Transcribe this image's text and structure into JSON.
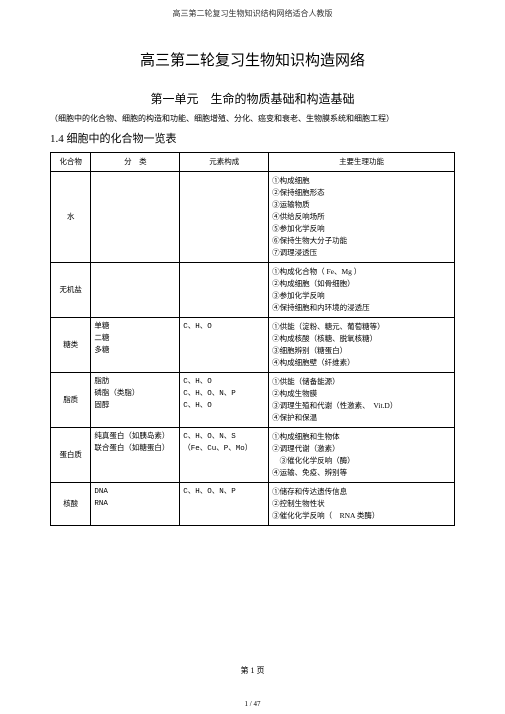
{
  "header": "高三第二轮复习生物知识结构网络适合人教版",
  "title_main": "高三第二轮复习生物知识构造网络",
  "title_unit": "第一单元　生命的物质基础和构造基础",
  "subtitle": "（细胞中的化合物、细胞的构造和功能、细胞增殖、分化、癌变和衰老、生物膜系统和细胞工程）",
  "section_heading": "1.4 细胞中的化合物一览表",
  "table": {
    "headers": [
      "化合物",
      "分　类",
      "元素构成",
      "主要生理功能"
    ],
    "rows": [
      {
        "compound": "水",
        "category": "",
        "elements": "",
        "functions": [
          "①构成细胞",
          "②保持细胞形态",
          "③运输物质",
          "④供给反响场所",
          "⑤参加化学反响",
          "⑥保持生物大分子功能",
          "⑦调理浸透压"
        ]
      },
      {
        "compound": "无机盐",
        "category": "",
        "elements": "",
        "functions": [
          "①构成化合物（ Fe、Mg ）",
          "②构成细胞（如骨细胞）",
          "③参加化学反响",
          "④保持细胞和内环境的浸透压"
        ]
      },
      {
        "compound": "糖类",
        "category": "单糖\n二糖\n多糖",
        "elements": "C、H、O",
        "functions": [
          "①供能（淀粉、糖元、葡萄糖等）",
          "②构成核酸（核糖、脱氧核糖）",
          "③细胞辨别（糖蛋白）",
          "④构成细胞壁（纤维素）"
        ]
      },
      {
        "compound": "脂质",
        "category": "脂肪\n磷脂（类脂）\n固醇",
        "elements": "C、H、O\nC、H、O、N、P\nC、H、O",
        "functions": [
          "①供能（储备能源）",
          "②构成生物膜",
          "③调理生殖和代谢（性激素、　Vit.D）",
          "④保护和保温"
        ]
      },
      {
        "compound": "蛋白质",
        "category": "纯真蛋白（如胰岛素）\n联合蛋白（如糖蛋白）",
        "elements": "C、H、O、N、S\n（Fe、Cu、P、Mo）",
        "functions": [
          "①构成细胞和生物体",
          "②调理代谢（激素）",
          "　③催化化学反响（酶）",
          "④运输、免疫、辨别等"
        ]
      },
      {
        "compound": "核酸",
        "category": "DNA\nRNA",
        "elements": "C、H、O、N、P",
        "functions": [
          "①储存和传达遗传信息",
          "②控制生物性状",
          "③催化化学反响（　RNA 类酶）"
        ]
      }
    ]
  },
  "page_num": "第 1 页",
  "footer_num": "1 / 47"
}
